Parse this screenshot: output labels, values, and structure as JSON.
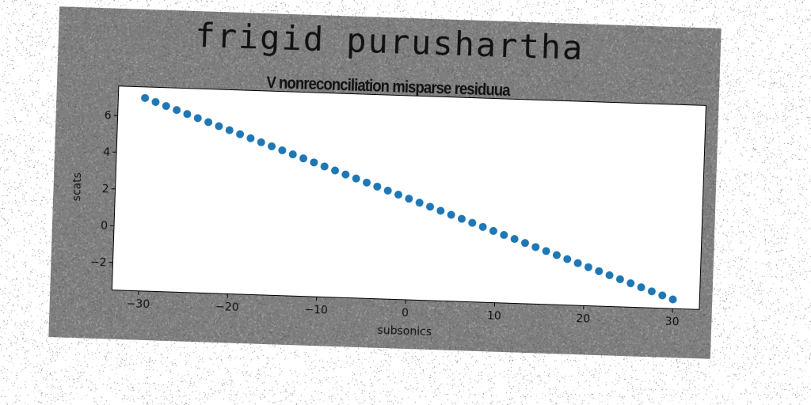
{
  "chart_data": {
    "type": "scatter",
    "title": "frigid purushartha",
    "subtitle": "V nonreconciliation misparse residuua",
    "xlabel": "subsonics",
    "ylabel": "scats",
    "xlim": [
      -33,
      33
    ],
    "ylim": [
      -3.5,
      7.6
    ],
    "xticks": [
      -30,
      -20,
      -10,
      0,
      10,
      20,
      30
    ],
    "yticks": [
      -2,
      0,
      2,
      4,
      6
    ],
    "xtick_labels": [
      "−30",
      "−20",
      "−10",
      "0",
      "10",
      "20",
      "30"
    ],
    "ytick_labels": [
      "−2",
      "0",
      "2",
      "4",
      "6"
    ],
    "grid": false,
    "legend": "none",
    "marker_color": "#1f77b4",
    "series": [
      {
        "x": [
          -30.0,
          -28.8,
          -27.6,
          -26.4,
          -25.2,
          -24.0,
          -22.8,
          -21.6,
          -20.4,
          -19.2,
          -18.0,
          -16.8,
          -15.6,
          -14.4,
          -13.2,
          -12.0,
          -10.8,
          -9.6,
          -8.4,
          -7.2,
          -6.0,
          -4.8,
          -3.6,
          -2.4,
          -1.2,
          0.0,
          1.2,
          2.4,
          3.6,
          4.8,
          6.0,
          7.2,
          8.4,
          9.6,
          10.8,
          12.0,
          13.2,
          14.4,
          15.6,
          16.8,
          18.0,
          19.2,
          20.4,
          21.6,
          22.8,
          24.0,
          25.2,
          26.4,
          27.6,
          28.8,
          30.0
        ],
        "y": [
          7.0,
          6.8,
          6.6,
          6.4,
          6.2,
          6.0,
          5.8,
          5.6,
          5.4,
          5.2,
          5.0,
          4.8,
          4.6,
          4.4,
          4.2,
          4.0,
          3.8,
          3.6,
          3.4,
          3.2,
          3.0,
          2.8,
          2.6,
          2.4,
          2.2,
          2.0,
          1.8,
          1.6,
          1.4,
          1.2,
          1.0,
          0.8,
          0.6,
          0.4,
          0.2,
          0.0,
          -0.2,
          -0.4,
          -0.6,
          -0.8,
          -1.0,
          -1.2,
          -1.4,
          -1.6,
          -1.8,
          -2.0,
          -2.2,
          -2.4,
          -2.6,
          -2.8,
          -3.0
        ]
      }
    ]
  }
}
